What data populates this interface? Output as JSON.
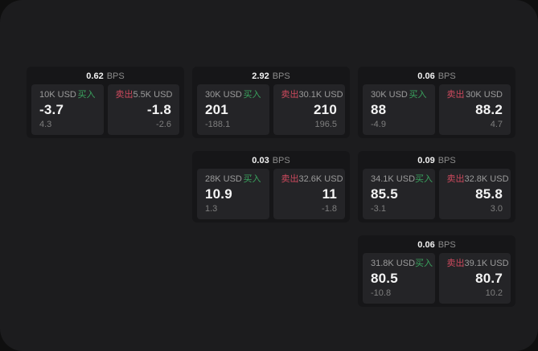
{
  "labels": {
    "unit": "BPS",
    "buy": "买入",
    "sell": "卖出"
  },
  "colors": {
    "backdrop": "#0f0f0f",
    "surface": "#1c1c1e",
    "card": "#161618",
    "panel": "#242427",
    "buy_green": "#3aa35e",
    "sell_red": "#ce4a5e",
    "text_primary": "#f4f4f4",
    "text_secondary": "#9b9b9b",
    "text_dim": "#7e7e7e"
  },
  "cards": [
    {
      "col": 1,
      "row": 1,
      "bps": "0.62",
      "buy": {
        "size": "10K USD",
        "value": "-3.7",
        "delta": "4.3"
      },
      "sell": {
        "size": "5.5K USD",
        "value": "-1.8",
        "delta": "-2.6"
      }
    },
    {
      "col": 2,
      "row": 1,
      "bps": "2.92",
      "buy": {
        "size": "30K USD",
        "value": "201",
        "delta": "-188.1"
      },
      "sell": {
        "size": "30.1K USD",
        "value": "210",
        "delta": "196.5"
      }
    },
    {
      "col": 3,
      "row": 1,
      "bps": "0.06",
      "buy": {
        "size": "30K USD",
        "value": "88",
        "delta": "-4.9"
      },
      "sell": {
        "size": "30K USD",
        "value": "88.2",
        "delta": "4.7"
      }
    },
    {
      "col": 2,
      "row": 2,
      "bps": "0.03",
      "buy": {
        "size": "28K USD",
        "value": "10.9",
        "delta": "1.3"
      },
      "sell": {
        "size": "32.6K USD",
        "value": "11",
        "delta": "-1.8"
      }
    },
    {
      "col": 3,
      "row": 2,
      "bps": "0.09",
      "buy": {
        "size": "34.1K USD",
        "value": "85.5",
        "delta": "-3.1"
      },
      "sell": {
        "size": "32.8K USD",
        "value": "85.8",
        "delta": "3.0"
      }
    },
    {
      "col": 3,
      "row": 3,
      "bps": "0.06",
      "buy": {
        "size": "31.8K USD",
        "value": "80.5",
        "delta": "-10.8"
      },
      "sell": {
        "size": "39.1K USD",
        "value": "80.7",
        "delta": "10.2"
      }
    }
  ]
}
